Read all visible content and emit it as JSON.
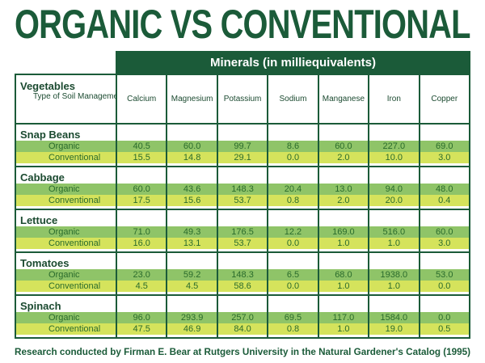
{
  "title": "ORGANIC VS CONVENTIONAL",
  "chart_data": {
    "type": "table",
    "title": "ORGANIC VS CONVENTIONAL",
    "group_header": "Minerals (in milliequivalents)",
    "row_header": "Vegetables",
    "row_subheader": "Type of Soil Management",
    "columns": [
      "Calcium",
      "Magnesium",
      "Potassium",
      "Sodium",
      "Manganese",
      "Iron",
      "Copper"
    ],
    "groups": [
      {
        "name": "Snap Beans",
        "rows": [
          {
            "label": "Organic",
            "values": [
              "40.5",
              "60.0",
              "99.7",
              "8.6",
              "60.0",
              "227.0",
              "69.0"
            ]
          },
          {
            "label": "Conventional",
            "values": [
              "15.5",
              "14.8",
              "29.1",
              "0.0",
              "2.0",
              "10.0",
              "3.0"
            ]
          }
        ]
      },
      {
        "name": "Cabbage",
        "rows": [
          {
            "label": "Organic",
            "values": [
              "60.0",
              "43.6",
              "148.3",
              "20.4",
              "13.0",
              "94.0",
              "48.0"
            ]
          },
          {
            "label": "Conventional",
            "values": [
              "17.5",
              "15.6",
              "53.7",
              "0.8",
              "2.0",
              "20.0",
              "0.4"
            ]
          }
        ]
      },
      {
        "name": "Lettuce",
        "rows": [
          {
            "label": "Organic",
            "values": [
              "71.0",
              "49.3",
              "176.5",
              "12.2",
              "169.0",
              "516.0",
              "60.0"
            ]
          },
          {
            "label": "Conventional",
            "values": [
              "16.0",
              "13.1",
              "53.7",
              "0.0",
              "1.0",
              "1.0",
              "3.0"
            ]
          }
        ]
      },
      {
        "name": "Tomatoes",
        "rows": [
          {
            "label": "Organic",
            "values": [
              "23.0",
              "59.2",
              "148.3",
              "6.5",
              "68.0",
              "1938.0",
              "53.0"
            ]
          },
          {
            "label": "Conventional",
            "values": [
              "4.5",
              "4.5",
              "58.6",
              "0.0",
              "1.0",
              "1.0",
              "0.0"
            ]
          }
        ]
      },
      {
        "name": "Spinach",
        "rows": [
          {
            "label": "Organic",
            "values": [
              "96.0",
              "293.9",
              "257.0",
              "69.5",
              "117.0",
              "1584.0",
              "0.0"
            ]
          },
          {
            "label": "Conventional",
            "values": [
              "47.5",
              "46.9",
              "84.0",
              "0.8",
              "1.0",
              "19.0",
              "0.5"
            ]
          }
        ]
      }
    ]
  },
  "source": "Research conducted by Firman E. Bear at Rutgers University in the Natural Gardener's Catalog (1995)",
  "colors": {
    "dark_green": "#1b5b39",
    "organic_row": "#8fc468",
    "conventional_row": "#d5e35c"
  }
}
